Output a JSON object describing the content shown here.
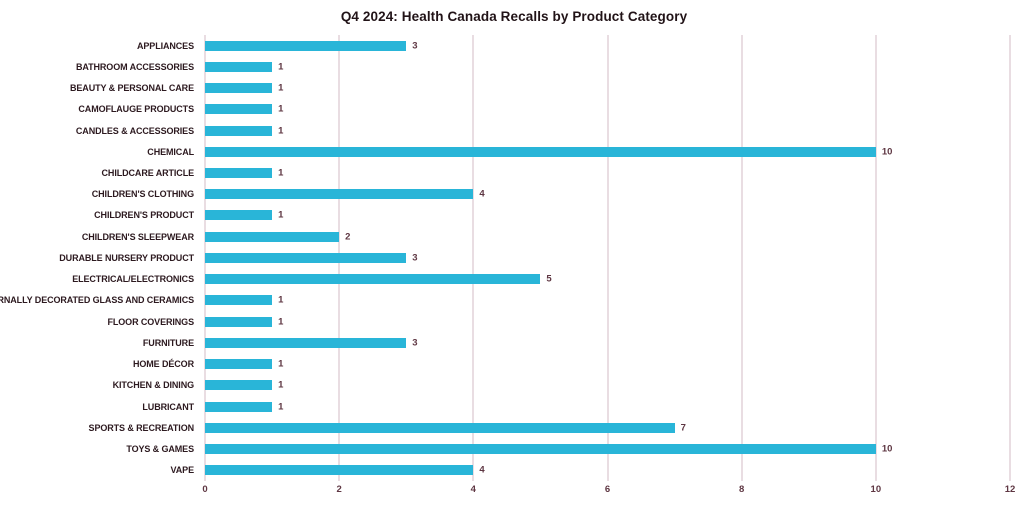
{
  "chart_data": {
    "type": "bar",
    "orientation": "horizontal",
    "title": "Q4 2024: Health Canada Recalls by Product Category",
    "categories": [
      "APPLIANCES",
      "BATHROOM ACCESSORIES",
      "BEAUTY & PERSONAL CARE",
      "CAMOFLAUGE PRODUCTS",
      "CANDLES & ACCESSORIES",
      "CHEMICAL",
      "CHILDCARE ARTICLE",
      "CHILDREN'S CLOTHING",
      "CHILDREN'S PRODUCT",
      "CHILDREN'S SLEEPWEAR",
      "DURABLE NURSERY PRODUCT",
      "ELECTRICAL/ELECTRONICS",
      "EXTERNALLY DECORATED GLASS AND CERAMICS",
      "FLOOR COVERINGS",
      "FURNITURE",
      "HOME DÉCOR",
      "KITCHEN & DINING",
      "LUBRICANT",
      "SPORTS & RECREATION",
      "TOYS & GAMES",
      "VAPE"
    ],
    "values": [
      3,
      1,
      1,
      1,
      1,
      10,
      1,
      4,
      1,
      2,
      3,
      5,
      1,
      1,
      3,
      1,
      1,
      1,
      7,
      10,
      4
    ],
    "xlabel": "",
    "ylabel": "",
    "xlim": [
      0,
      12
    ],
    "x_ticks": [
      0,
      2,
      4,
      6,
      8,
      10,
      12
    ],
    "grid": "vertical-only",
    "legend": "none",
    "data_labels": true,
    "colors": {
      "bar": "#29b5d8",
      "gridline": "#e9dde2",
      "title_text": "#211317",
      "category_text": "#2c191f",
      "value_text": "#5e3642",
      "background": "#ffffff"
    }
  }
}
